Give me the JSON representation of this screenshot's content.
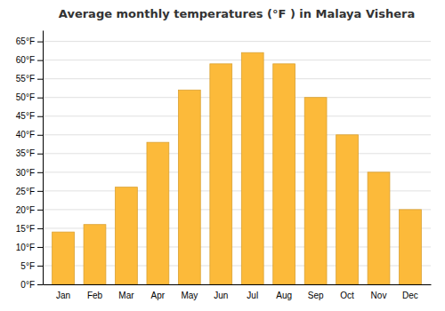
{
  "chart_data": {
    "type": "bar",
    "title": "Average monthly temperatures (°F ) in Malaya Vishera",
    "categories": [
      "Jan",
      "Feb",
      "Mar",
      "Apr",
      "May",
      "Jun",
      "Jul",
      "Aug",
      "Sep",
      "Oct",
      "Nov",
      "Dec"
    ],
    "values": [
      14,
      16,
      26,
      38,
      52,
      59,
      62,
      59,
      50,
      40,
      30,
      20
    ],
    "color": "#FCBA3A",
    "ylim": [
      0,
      68
    ],
    "yticks": [
      {
        "value": 0,
        "label": "0°F"
      },
      {
        "value": 5,
        "label": "5°F"
      },
      {
        "value": 10,
        "label": "10°F"
      },
      {
        "value": 15,
        "label": "15°F"
      },
      {
        "value": 20,
        "label": "20°F"
      },
      {
        "value": 25,
        "label": "25°F"
      },
      {
        "value": 30,
        "label": "30°F"
      },
      {
        "value": 35,
        "label": "35°F"
      },
      {
        "value": 40,
        "label": "40°F"
      },
      {
        "value": 45,
        "label": "45°F"
      },
      {
        "value": 50,
        "label": "50°F"
      },
      {
        "value": 55,
        "label": "55°F"
      },
      {
        "value": 60,
        "label": "60°F"
      },
      {
        "value": 65,
        "label": "65°F"
      }
    ],
    "grid": true
  }
}
